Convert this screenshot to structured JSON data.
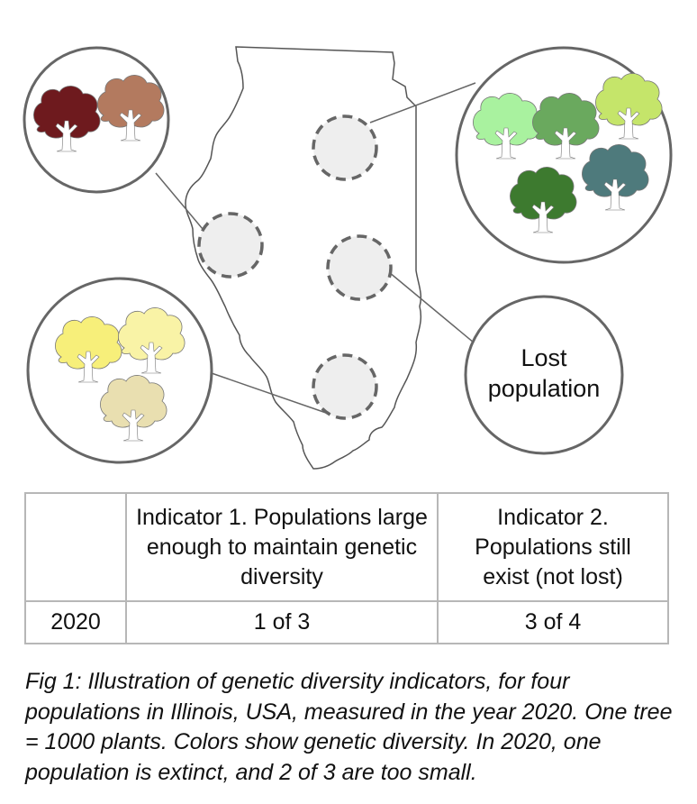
{
  "lost_label": [
    "Lost",
    "population"
  ],
  "table": {
    "headers": [
      "",
      "Indicator 1. Populations large enough to maintain genetic diversity",
      "Indicator 2. Populations still exist (not lost)"
    ],
    "rows": [
      {
        "year": "2020",
        "indicator1": "1 of 3",
        "indicator2": "3 of 4"
      }
    ]
  },
  "caption": "Fig 1: Illustration of genetic diversity indicators, for four populations in Illinois, USA, measured in the year 2020. One tree = 1000 plants. Colors show genetic diversity. In 2020, one population is extinct, and 2 of 3 are too small.",
  "colors": {
    "outline": "#555555",
    "population_fill": "#eeeeee",
    "circle_stroke": "#666666"
  },
  "populations": [
    {
      "name": "northwest",
      "tree_colors": [
        "#6e1a1e",
        "#b37a5f"
      ]
    },
    {
      "name": "northeast",
      "tree_colors": [
        "#a9f29f",
        "#6aa95e",
        "#c5e56a",
        "#3d7a2f",
        "#4e7a7c"
      ]
    },
    {
      "name": "southwest",
      "tree_colors": [
        "#f7ef7a",
        "#f9f3a6",
        "#e9dfb0"
      ]
    },
    {
      "name": "east-central",
      "tree_colors": [],
      "status": "lost"
    }
  ]
}
